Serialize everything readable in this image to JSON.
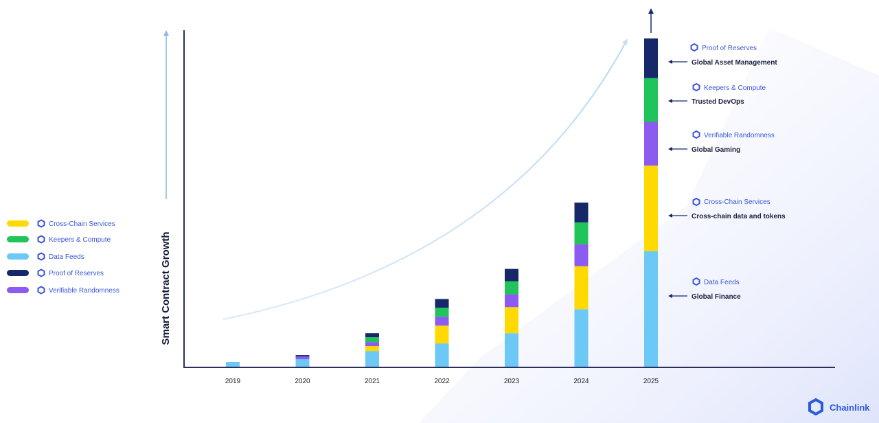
{
  "chart_data": {
    "type": "bar",
    "stacked": true,
    "title": "",
    "xlabel": "",
    "ylabel": "Smart Contract Growth",
    "categories": [
      "2019",
      "2020",
      "2021",
      "2022",
      "2023",
      "2024",
      "2025"
    ],
    "series": [
      {
        "name": "Data Feeds",
        "color": "#6cc8f4",
        "values": [
          7,
          11,
          23,
          34,
          49,
          84,
          169
        ]
      },
      {
        "name": "Cross-Chain Services",
        "color": "#ffd900",
        "values": [
          0,
          0,
          7,
          26,
          38,
          63,
          125
        ]
      },
      {
        "name": "Verifiable Randomness",
        "color": "#8c5bf0",
        "values": [
          0,
          4,
          6,
          13,
          19,
          32,
          64
        ]
      },
      {
        "name": "Keepers & Compute",
        "color": "#1fc45a",
        "values": [
          0,
          0,
          7,
          13,
          19,
          32,
          64
        ]
      },
      {
        "name": "Proof of Reserves",
        "color": "#16286a",
        "values": [
          0,
          2,
          6,
          13,
          18,
          29,
          58
        ]
      }
    ],
    "ylim": [
      0,
      480
    ],
    "grid": false,
    "legend_position": "left"
  },
  "legend": [
    {
      "label": "Cross-Chain Services",
      "color": "#ffd900"
    },
    {
      "label": "Keepers & Compute",
      "color": "#1fc45a"
    },
    {
      "label": "Data Feeds",
      "color": "#6cc8f4"
    },
    {
      "label": "Proof of Reserves",
      "color": "#16286a"
    },
    {
      "label": "Verifiable Randomness",
      "color": "#8c5bf0"
    }
  ],
  "annotations": [
    {
      "title": "Proof of Reserves",
      "subtitle": "Global Asset Management"
    },
    {
      "title": "Keepers & Compute",
      "subtitle": "Trusted DevOps"
    },
    {
      "title": "Verifiable Randomness",
      "subtitle": "Global Gaming"
    },
    {
      "title": "Cross-Chain Services",
      "subtitle": "Cross-chain data and tokens"
    },
    {
      "title": "Data Feeds",
      "subtitle": "Global Finance"
    }
  ],
  "brand": {
    "name": "Chainlink",
    "color": "#2a5ada"
  },
  "colors": {
    "axis": "#2b2f5c",
    "accent": "#3a57d6"
  }
}
